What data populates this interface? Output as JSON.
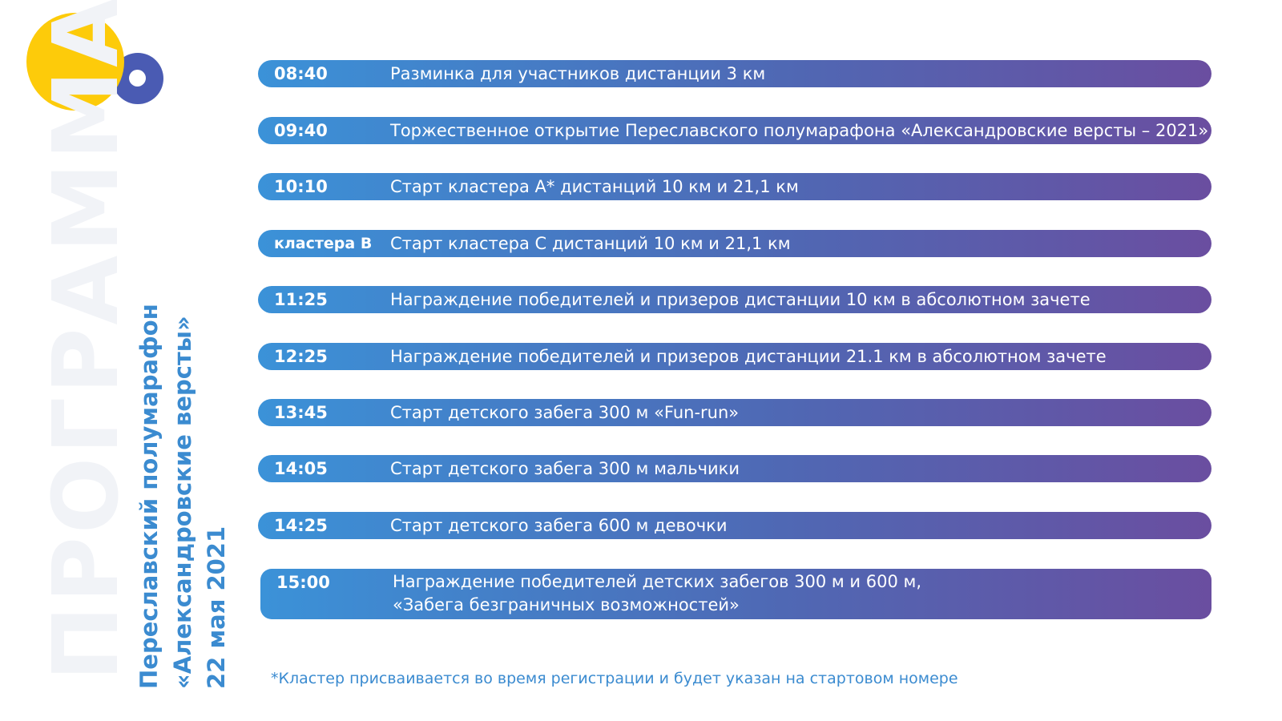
{
  "logo": {
    "sun_color": "#fdcb0a",
    "ring_color": "#4a5bb3"
  },
  "watermark": "ПРОГРАММА",
  "event": {
    "name_line1": "Переславский полумарафон",
    "name_line2": "«Александровские версты»",
    "date": "22 мая 2021"
  },
  "colors": {
    "accent": "#3b8bd0",
    "gradient_start": "#3b92d8",
    "gradient_end": "#6a4ea0"
  },
  "schedule": [
    {
      "time": "08:40",
      "text": "Разминка для участников дистанции 3 км"
    },
    {
      "time": "09:40",
      "text": "Торжественное открытие Переславского полумарафона «Александровские версты – 2021»"
    },
    {
      "time": "10:10",
      "text": "Старт кластера А* дистанций 10 км и 21,1 км"
    },
    {
      "time": "кластера В",
      "text": "Старт кластера С дистанций 10 км и 21,1 км"
    },
    {
      "time": "11:25",
      "text": "Награждение победителей и призеров дистанции 10 км в абсолютном зачете"
    },
    {
      "time": "12:25",
      "text": "Награждение победителей и призеров дистанции 21.1 км в абсолютном зачете"
    },
    {
      "time": "13:45",
      "text": "Старт детского забега 300 м «Fun-run»"
    },
    {
      "time": "14:05",
      "text": "Старт детского забега 300 м мальчики"
    },
    {
      "time": "14:25",
      "text": "Старт детского забега 600 м девочки"
    },
    {
      "time": "15:00",
      "text_line1": "Награждение победителей детских забегов 300 м и 600 м,",
      "text_line2": "«Забега безграничных возможностей»"
    }
  ],
  "footnote": "*Кластер присваивается во время регистрации и будет указан на стартовом номере"
}
